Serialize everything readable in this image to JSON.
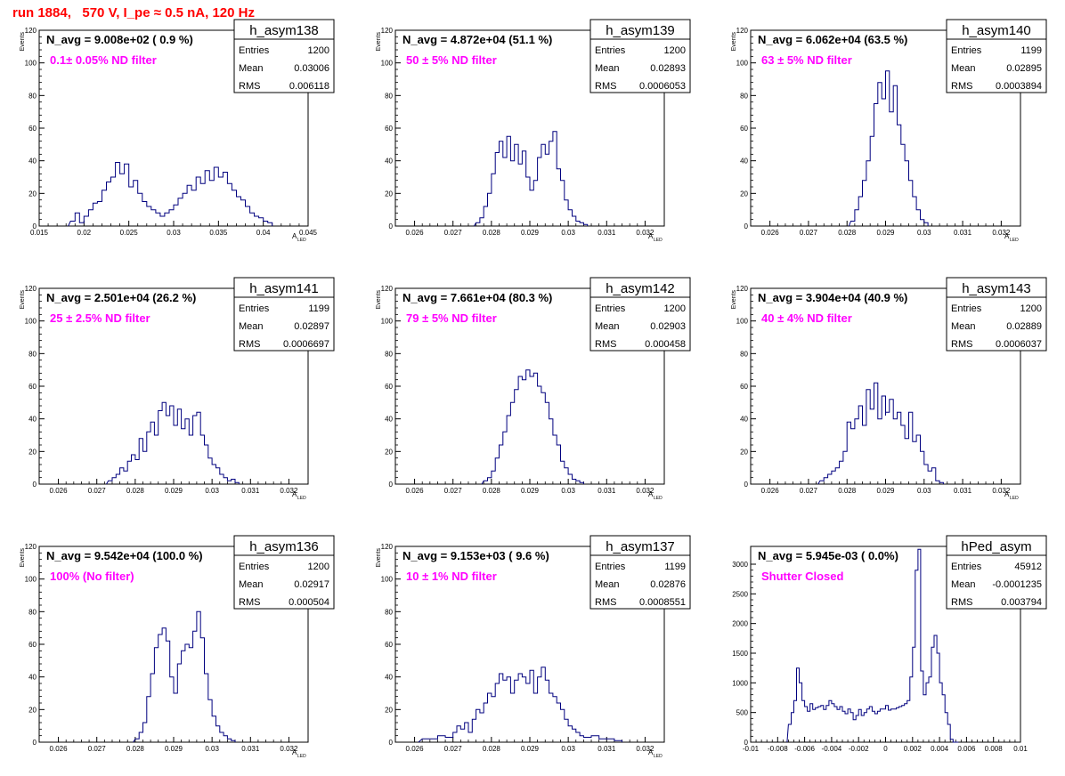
{
  "header": {
    "title": "run 1884,   570 V, I_pe ≈ 0.5 nA, 120 Hz"
  },
  "colors": {
    "hist": "#00007f",
    "annotation": "#ff00ff",
    "title": "#ff0000",
    "frame": "#000000"
  },
  "chart_data": [
    {
      "type": "histogram",
      "name": "h_asym138",
      "navg": "N_avg = 9.008e+02 ( 0.9 %)",
      "filter_label": "0.1± 0.05% ND filter",
      "stats": {
        "entries": "1200",
        "mean": "0.03006",
        "rms": "0.006118"
      },
      "xlabel": "A",
      "xlabel_sub": "LED",
      "ylabel": "Events",
      "xlim": [
        0.015,
        0.045
      ],
      "ylim": [
        0,
        120
      ],
      "xticks": [
        0.015,
        0.02,
        0.025,
        0.03,
        0.035,
        0.04,
        0.045
      ],
      "xtick_labels": [
        "0.015",
        "0.02",
        "0.025",
        "0.03",
        "0.035",
        "0.04",
        "0.045"
      ],
      "yticks": [
        0,
        20,
        40,
        60,
        80,
        100,
        120
      ],
      "x": [
        0.0185,
        0.019,
        0.0195,
        0.02,
        0.0205,
        0.021,
        0.0215,
        0.022,
        0.0225,
        0.023,
        0.0235,
        0.024,
        0.0245,
        0.025,
        0.0255,
        0.026,
        0.0265,
        0.027,
        0.0275,
        0.028,
        0.0285,
        0.029,
        0.0295,
        0.03,
        0.0305,
        0.031,
        0.0315,
        0.032,
        0.0325,
        0.033,
        0.0335,
        0.034,
        0.0345,
        0.035,
        0.0355,
        0.036,
        0.0365,
        0.037,
        0.0375,
        0.038,
        0.0385,
        0.039,
        0.0395,
        0.04,
        0.0405
      ],
      "values": [
        3,
        8,
        2,
        6,
        10,
        14,
        15,
        22,
        27,
        30,
        39,
        32,
        38,
        24,
        28,
        20,
        15,
        12,
        10,
        8,
        6,
        8,
        10,
        13,
        17,
        20,
        25,
        22,
        30,
        26,
        34,
        28,
        36,
        30,
        33,
        26,
        22,
        18,
        16,
        12,
        8,
        6,
        5,
        3,
        2
      ]
    },
    {
      "type": "histogram",
      "name": "h_asym139",
      "navg": "N_avg = 4.872e+04 (51.1 %)",
      "filter_label": "50 ± 5% ND filter",
      "stats": {
        "entries": "1200",
        "mean": "0.02893",
        "rms": "0.0006053"
      },
      "xlabel": "A",
      "xlabel_sub": "LED",
      "ylabel": "Events",
      "xlim": [
        0.0255,
        0.0325
      ],
      "ylim": [
        0,
        120
      ],
      "xticks": [
        0.026,
        0.027,
        0.028,
        0.029,
        0.03,
        0.031,
        0.032
      ],
      "xtick_labels": [
        "0.026",
        "0.027",
        "0.028",
        "0.029",
        "0.03",
        "0.031",
        "0.032"
      ],
      "yticks": [
        0,
        20,
        40,
        60,
        80,
        100,
        120
      ],
      "x": [
        0.0276,
        0.0277,
        0.0278,
        0.0279,
        0.028,
        0.0281,
        0.0282,
        0.0283,
        0.0284,
        0.0285,
        0.0286,
        0.0287,
        0.0288,
        0.0289,
        0.029,
        0.0291,
        0.0292,
        0.0293,
        0.0294,
        0.0295,
        0.0296,
        0.0297,
        0.0298,
        0.0299,
        0.03,
        0.0301,
        0.0302,
        0.0303,
        0.0304
      ],
      "values": [
        2,
        5,
        12,
        20,
        32,
        45,
        52,
        42,
        55,
        40,
        50,
        38,
        46,
        30,
        22,
        28,
        42,
        50,
        44,
        52,
        58,
        35,
        28,
        16,
        10,
        6,
        3,
        2,
        1
      ]
    },
    {
      "type": "histogram",
      "name": "h_asym140",
      "navg": "N_avg = 6.062e+04 (63.5 %)",
      "filter_label": "63 ± 5% ND filter",
      "stats": {
        "entries": "1199",
        "mean": "0.02895",
        "rms": "0.0003894"
      },
      "xlabel": "A",
      "xlabel_sub": "LED",
      "ylabel": "Events",
      "xlim": [
        0.0255,
        0.0325
      ],
      "ylim": [
        0,
        120
      ],
      "xticks": [
        0.026,
        0.027,
        0.028,
        0.029,
        0.03,
        0.031,
        0.032
      ],
      "xtick_labels": [
        "0.026",
        "0.027",
        "0.028",
        "0.029",
        "0.03",
        "0.031",
        "0.032"
      ],
      "yticks": [
        0,
        20,
        40,
        60,
        80,
        100,
        120
      ],
      "x": [
        0.0281,
        0.0282,
        0.0283,
        0.0284,
        0.0285,
        0.0286,
        0.0287,
        0.0288,
        0.0289,
        0.029,
        0.0291,
        0.0292,
        0.0293,
        0.0294,
        0.0295,
        0.0296,
        0.0297,
        0.0298,
        0.0299,
        0.03
      ],
      "values": [
        3,
        10,
        18,
        28,
        40,
        55,
        75,
        88,
        78,
        95,
        70,
        86,
        62,
        50,
        40,
        28,
        18,
        10,
        4,
        2
      ]
    },
    {
      "type": "histogram",
      "name": "h_asym141",
      "navg": "N_avg = 2.501e+04 (26.2 %)",
      "filter_label": "25 ± 2.5% ND filter",
      "stats": {
        "entries": "1199",
        "mean": "0.02897",
        "rms": "0.0006697"
      },
      "xlabel": "A",
      "xlabel_sub": "LED",
      "ylabel": "Events",
      "xlim": [
        0.0255,
        0.0325
      ],
      "ylim": [
        0,
        120
      ],
      "xticks": [
        0.026,
        0.027,
        0.028,
        0.029,
        0.03,
        0.031,
        0.032
      ],
      "xtick_labels": [
        "0.026",
        "0.027",
        "0.028",
        "0.029",
        "0.03",
        "0.031",
        "0.032"
      ],
      "yticks": [
        0,
        20,
        40,
        60,
        80,
        100,
        120
      ],
      "x": [
        0.0273,
        0.0274,
        0.0275,
        0.0276,
        0.0277,
        0.0278,
        0.0279,
        0.028,
        0.0281,
        0.0282,
        0.0283,
        0.0284,
        0.0285,
        0.0286,
        0.0287,
        0.0288,
        0.0289,
        0.029,
        0.0291,
        0.0292,
        0.0293,
        0.0294,
        0.0295,
        0.0296,
        0.0297,
        0.0298,
        0.0299,
        0.03,
        0.0301,
        0.0302,
        0.0303,
        0.0304,
        0.0305,
        0.0306
      ],
      "values": [
        2,
        4,
        6,
        10,
        8,
        14,
        18,
        15,
        28,
        20,
        32,
        38,
        30,
        45,
        50,
        42,
        48,
        36,
        46,
        34,
        40,
        30,
        42,
        44,
        30,
        24,
        16,
        12,
        10,
        6,
        4,
        2,
        3,
        1
      ]
    },
    {
      "type": "histogram",
      "name": "h_asym142",
      "navg": "N_avg = 7.661e+04 (80.3 %)",
      "filter_label": "79 ± 5% ND filter",
      "stats": {
        "entries": "1200",
        "mean": "0.02903",
        "rms": "0.000458"
      },
      "xlabel": "A",
      "xlabel_sub": "LED",
      "ylabel": "Events",
      "xlim": [
        0.0255,
        0.0325
      ],
      "ylim": [
        0,
        120
      ],
      "xticks": [
        0.026,
        0.027,
        0.028,
        0.029,
        0.03,
        0.031,
        0.032
      ],
      "xtick_labels": [
        "0.026",
        "0.027",
        "0.028",
        "0.029",
        "0.03",
        "0.031",
        "0.032"
      ],
      "yticks": [
        0,
        20,
        40,
        60,
        80,
        100,
        120
      ],
      "x": [
        0.0278,
        0.0279,
        0.028,
        0.0281,
        0.0282,
        0.0283,
        0.0284,
        0.0285,
        0.0286,
        0.0287,
        0.0288,
        0.0289,
        0.029,
        0.0291,
        0.0292,
        0.0293,
        0.0294,
        0.0295,
        0.0296,
        0.0297,
        0.0298,
        0.0299,
        0.03,
        0.0301,
        0.0302,
        0.0303
      ],
      "values": [
        2,
        4,
        8,
        16,
        24,
        32,
        42,
        50,
        58,
        66,
        64,
        70,
        66,
        68,
        60,
        56,
        50,
        40,
        30,
        24,
        14,
        10,
        6,
        3,
        2,
        1
      ]
    },
    {
      "type": "histogram",
      "name": "h_asym143",
      "navg": "N_avg = 3.904e+04 (40.9 %)",
      "filter_label": "40 ± 4% ND filter",
      "stats": {
        "entries": "1200",
        "mean": "0.02889",
        "rms": "0.0006037"
      },
      "xlabel": "A",
      "xlabel_sub": "LED",
      "ylabel": "Events",
      "xlim": [
        0.0255,
        0.0325
      ],
      "ylim": [
        0,
        120
      ],
      "xticks": [
        0.026,
        0.027,
        0.028,
        0.029,
        0.03,
        0.031,
        0.032
      ],
      "xtick_labels": [
        "0.026",
        "0.027",
        "0.028",
        "0.029",
        "0.03",
        "0.031",
        "0.032"
      ],
      "yticks": [
        0,
        20,
        40,
        60,
        80,
        100,
        120
      ],
      "x": [
        0.0273,
        0.0274,
        0.0275,
        0.0276,
        0.0277,
        0.0278,
        0.0279,
        0.028,
        0.0281,
        0.0282,
        0.0283,
        0.0284,
        0.0285,
        0.0286,
        0.0287,
        0.0288,
        0.0289,
        0.029,
        0.029,
        0.0291,
        0.0292,
        0.0293,
        0.0294,
        0.0295,
        0.0296,
        0.0297,
        0.0298,
        0.0299,
        0.03,
        0.0301,
        0.0302,
        0.0303,
        0.0304
      ],
      "values": [
        2,
        4,
        6,
        8,
        10,
        14,
        20,
        38,
        34,
        40,
        48,
        36,
        58,
        46,
        62,
        40,
        54,
        42,
        44,
        52,
        40,
        44,
        36,
        28,
        44,
        26,
        30,
        20,
        12,
        8,
        10,
        2,
        1
      ]
    },
    {
      "type": "histogram",
      "name": "h_asym136",
      "navg": "N_avg = 9.542e+04 (100.0 %)",
      "filter_label": "100% (No filter)",
      "stats": {
        "entries": "1200",
        "mean": "0.02917",
        "rms": "0.000504"
      },
      "xlabel": "A",
      "xlabel_sub": "LED",
      "ylabel": "Events",
      "xlim": [
        0.0255,
        0.0325
      ],
      "ylim": [
        0,
        120
      ],
      "xticks": [
        0.026,
        0.027,
        0.028,
        0.029,
        0.03,
        0.031,
        0.032
      ],
      "xtick_labels": [
        "0.026",
        "0.027",
        "0.028",
        "0.029",
        "0.03",
        "0.031",
        "0.032"
      ],
      "yticks": [
        0,
        20,
        40,
        60,
        80,
        100,
        120
      ],
      "x": [
        0.028,
        0.0281,
        0.0282,
        0.0283,
        0.0284,
        0.0285,
        0.0286,
        0.0287,
        0.0288,
        0.0289,
        0.029,
        0.0291,
        0.0292,
        0.0293,
        0.0294,
        0.0295,
        0.0296,
        0.0297,
        0.0298,
        0.0299,
        0.03,
        0.0301,
        0.0302,
        0.0303,
        0.0304,
        0.0305
      ],
      "values": [
        2,
        6,
        12,
        28,
        42,
        58,
        66,
        70,
        62,
        40,
        30,
        48,
        56,
        60,
        58,
        68,
        80,
        64,
        42,
        26,
        16,
        10,
        6,
        4,
        2,
        1
      ]
    },
    {
      "type": "histogram",
      "name": "h_asym137",
      "navg": "N_avg = 9.153e+03 ( 9.6 %)",
      "filter_label": "10 ± 1% ND filter",
      "stats": {
        "entries": "1199",
        "mean": "0.02876",
        "rms": "0.0008551"
      },
      "xlabel": "A",
      "xlabel_sub": "LED",
      "ylabel": "Events",
      "xlim": [
        0.0255,
        0.0325
      ],
      "ylim": [
        0,
        120
      ],
      "xticks": [
        0.026,
        0.027,
        0.028,
        0.029,
        0.03,
        0.031,
        0.032
      ],
      "xtick_labels": [
        "0.026",
        "0.027",
        "0.028",
        "0.029",
        "0.03",
        "0.031",
        "0.032"
      ],
      "yticks": [
        0,
        20,
        40,
        60,
        80,
        100,
        120
      ],
      "x": [
        0.0262,
        0.0264,
        0.0266,
        0.0268,
        0.027,
        0.0271,
        0.0272,
        0.0273,
        0.0274,
        0.0275,
        0.0276,
        0.0277,
        0.0278,
        0.0279,
        0.028,
        0.0281,
        0.0282,
        0.0283,
        0.0284,
        0.0285,
        0.0286,
        0.0287,
        0.0288,
        0.0289,
        0.029,
        0.0291,
        0.0292,
        0.0293,
        0.0294,
        0.0295,
        0.0296,
        0.0297,
        0.0298,
        0.0299,
        0.03,
        0.0301,
        0.0302,
        0.0303,
        0.0304,
        0.0306,
        0.0308,
        0.031,
        0.0312
      ],
      "values": [
        2,
        2,
        4,
        3,
        6,
        10,
        8,
        12,
        6,
        14,
        20,
        18,
        24,
        30,
        28,
        36,
        42,
        38,
        40,
        30,
        38,
        42,
        40,
        36,
        44,
        30,
        40,
        46,
        38,
        30,
        28,
        24,
        20,
        14,
        10,
        8,
        6,
        4,
        3,
        4,
        2,
        2,
        1
      ]
    },
    {
      "type": "histogram",
      "name": "hPed_asym",
      "navg": "N_avg = 5.945e-03 ( 0.0%)",
      "filter_label": "Shutter Closed",
      "stats": {
        "entries": "45912",
        "mean": "-0.0001235",
        "rms": "0.003794"
      },
      "xlabel": "",
      "xlabel_sub": "",
      "ylabel": "",
      "xlim": [
        -0.01,
        0.01
      ],
      "ylim": [
        0,
        3300
      ],
      "xticks": [
        -0.01,
        -0.008,
        -0.006,
        -0.004,
        -0.002,
        0,
        0.002,
        0.004,
        0.006,
        0.008,
        0.01
      ],
      "xtick_labels": [
        "-0.01",
        "-0.008",
        "-0.006",
        "-0.004",
        "-0.002",
        "0",
        "0.002",
        "0.004",
        "0.006",
        "0.008",
        "0.01"
      ],
      "yticks": [
        0,
        500,
        1000,
        1500,
        2000,
        2500,
        3000
      ],
      "x": [
        -0.0072,
        -0.007,
        -0.0068,
        -0.0066,
        -0.0064,
        -0.0062,
        -0.006,
        -0.0058,
        -0.0056,
        -0.0054,
        -0.0052,
        -0.005,
        -0.0048,
        -0.0046,
        -0.0044,
        -0.0042,
        -0.004,
        -0.0038,
        -0.0036,
        -0.0034,
        -0.0032,
        -0.003,
        -0.0028,
        -0.0026,
        -0.0024,
        -0.0022,
        -0.002,
        -0.0018,
        -0.0016,
        -0.0014,
        -0.0012,
        -0.001,
        -0.0008,
        -0.0006,
        -0.0004,
        -0.0002,
        0,
        0.0002,
        0.0004,
        0.0006,
        0.0008,
        0.001,
        0.0012,
        0.0014,
        0.0016,
        0.0018,
        0.002,
        0.0022,
        0.0024,
        0.0026,
        0.0028,
        0.003,
        0.0032,
        0.0034,
        0.0036,
        0.0038,
        0.004,
        0.0042,
        0.0044,
        0.0046,
        0.0048,
        0.005,
        0.0052
      ],
      "values": [
        300,
        500,
        700,
        1250,
        1000,
        700,
        600,
        520,
        650,
        550,
        580,
        600,
        620,
        550,
        620,
        700,
        650,
        600,
        550,
        600,
        520,
        480,
        560,
        500,
        380,
        450,
        550,
        450,
        500,
        560,
        600,
        520,
        480,
        520,
        560,
        560,
        620,
        540,
        560,
        560,
        580,
        600,
        620,
        650,
        700,
        1100,
        1600,
        2900,
        3250,
        1200,
        800,
        1000,
        1100,
        1600,
        1800,
        1500,
        1000,
        800,
        500,
        300,
        50,
        0,
        0
      ]
    }
  ]
}
